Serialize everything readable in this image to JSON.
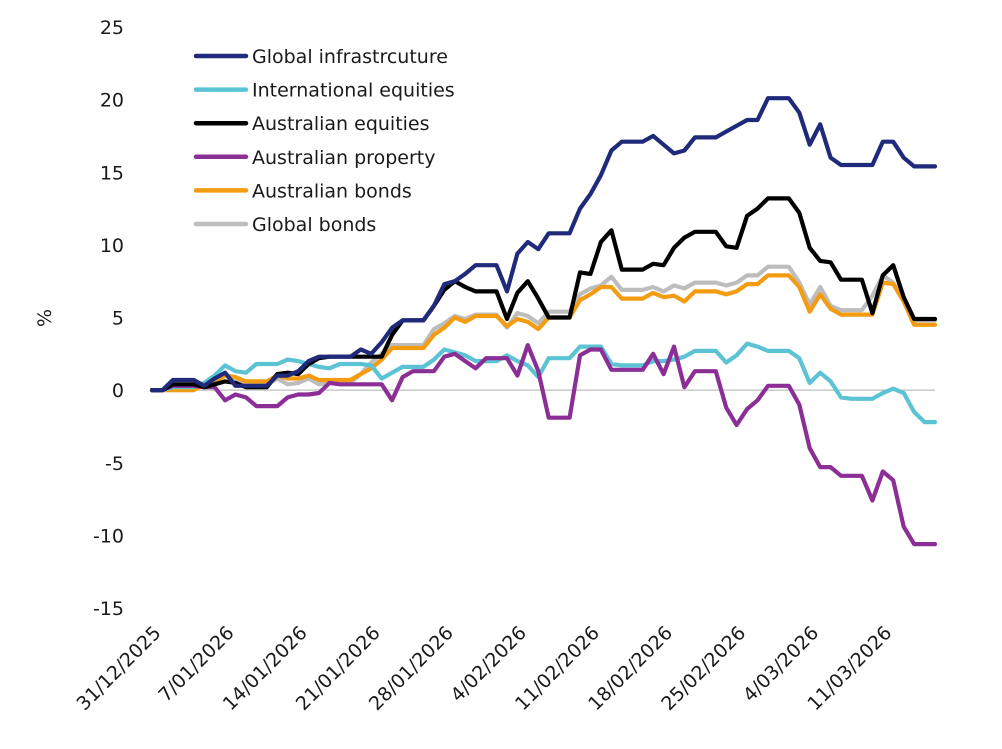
{
  "chart_data": {
    "type": "line",
    "title": "",
    "xlabel": "",
    "ylabel": "%",
    "ylim": [
      -15,
      25
    ],
    "yticks": [
      "25",
      "20",
      "15",
      "10",
      "5",
      "0",
      "-5",
      "-10",
      "-15"
    ],
    "xtick_labels": [
      "31/12/2025",
      "7/01/2026",
      "14/01/2026",
      "21/01/2026",
      "28/01/2026",
      "4/02/2026",
      "11/02/2026",
      "18/02/2026",
      "25/02/2026",
      "4/03/2026",
      "11/03/2026"
    ],
    "grid": false,
    "legend_position": "top-left",
    "x_dates": [
      "2025-12-31",
      "2026-01-01",
      "2026-01-02",
      "2026-01-03",
      "2026-01-04",
      "2026-01-05",
      "2026-01-06",
      "2026-01-07",
      "2026-01-08",
      "2026-01-09",
      "2026-01-10",
      "2026-01-11",
      "2026-01-12",
      "2026-01-13",
      "2026-01-14",
      "2026-01-15",
      "2026-01-16",
      "2026-01-17",
      "2026-01-18",
      "2026-01-19",
      "2026-01-20",
      "2026-01-21",
      "2026-01-22",
      "2026-01-23",
      "2026-01-24",
      "2026-01-25",
      "2026-01-26",
      "2026-01-27",
      "2026-01-28",
      "2026-01-29",
      "2026-01-30",
      "2026-01-31",
      "2026-02-01",
      "2026-02-02",
      "2026-02-03",
      "2026-02-04",
      "2026-02-05",
      "2026-02-06",
      "2026-02-07",
      "2026-02-08",
      "2026-02-09",
      "2026-02-10",
      "2026-02-11",
      "2026-02-12",
      "2026-02-13",
      "2026-02-14",
      "2026-02-15",
      "2026-02-16",
      "2026-02-17",
      "2026-02-18",
      "2026-02-19",
      "2026-02-20",
      "2026-02-21",
      "2026-02-22",
      "2026-02-23",
      "2026-02-24",
      "2026-02-25",
      "2026-02-26",
      "2026-02-27",
      "2026-02-28",
      "2026-03-01",
      "2026-03-02",
      "2026-03-03",
      "2026-03-04",
      "2026-03-05",
      "2026-03-06",
      "2026-03-07",
      "2026-03-08",
      "2026-03-09",
      "2026-03-10",
      "2026-03-11",
      "2026-03-12",
      "2026-03-13",
      "2026-03-14",
      "2026-03-15",
      "2026-03-16"
    ],
    "series": [
      {
        "name": "Global infrastrcuture",
        "color": "#1f2a7a",
        "values": [
          0,
          0,
          0.7,
          0.7,
          0.7,
          0.3,
          0.8,
          1.2,
          0.3,
          0.3,
          0.3,
          0.3,
          1.0,
          1.0,
          1.3,
          2.0,
          2.3,
          2.3,
          2.3,
          2.3,
          2.8,
          2.5,
          3.3,
          4.3,
          4.8,
          4.8,
          4.8,
          5.8,
          7.3,
          7.5,
          8.0,
          8.6,
          8.6,
          8.6,
          6.8,
          9.4,
          10.2,
          9.7,
          10.8,
          10.8,
          10.8,
          12.5,
          13.5,
          14.8,
          16.5,
          17.1,
          17.1,
          17.1,
          17.5,
          16.9,
          16.3,
          16.5,
          17.4,
          17.4,
          17.4,
          17.8,
          18.2,
          18.6,
          18.6,
          20.1,
          20.1,
          20.1,
          19.1,
          16.9,
          18.3,
          16.0,
          15.5,
          15.5,
          15.5,
          15.5,
          17.1,
          17.1,
          16.0,
          15.4,
          15.4,
          15.4
        ]
      },
      {
        "name": "International equities",
        "color": "#5bc3d4",
        "values": [
          0,
          0,
          0.2,
          0.2,
          0.2,
          0.5,
          1.0,
          1.7,
          1.3,
          1.2,
          1.8,
          1.8,
          1.8,
          2.1,
          2.0,
          1.8,
          1.6,
          1.5,
          1.8,
          1.8,
          1.8,
          1.7,
          0.8,
          1.2,
          1.6,
          1.6,
          1.6,
          2.1,
          2.8,
          2.6,
          2.4,
          2.0,
          2.0,
          2.0,
          2.4,
          2.0,
          1.7,
          0.9,
          2.2,
          2.2,
          2.2,
          3.0,
          3.0,
          3.0,
          1.8,
          1.7,
          1.7,
          1.7,
          2.0,
          2.0,
          2.1,
          2.3,
          2.7,
          2.7,
          2.7,
          1.9,
          2.4,
          3.2,
          3.0,
          2.7,
          2.7,
          2.7,
          2.2,
          0.5,
          1.2,
          0.6,
          -0.5,
          -0.6,
          -0.6,
          -0.6,
          -0.2,
          0.1,
          -0.2,
          -1.5,
          -2.2,
          -2.2
        ]
      },
      {
        "name": "Australian equities",
        "color": "#000000",
        "values": [
          0,
          0,
          0.4,
          0.4,
          0.4,
          0.2,
          0.4,
          0.6,
          0.5,
          0.2,
          0.2,
          0.2,
          1.1,
          1.2,
          1.1,
          1.8,
          2.2,
          2.3,
          2.3,
          2.3,
          2.3,
          2.3,
          2.3,
          3.8,
          4.8,
          4.8,
          4.8,
          5.8,
          6.9,
          7.5,
          7.1,
          6.8,
          6.8,
          6.8,
          4.9,
          6.7,
          7.5,
          6.3,
          5.0,
          5.0,
          5.0,
          8.1,
          8.0,
          10.2,
          11.0,
          8.3,
          8.3,
          8.3,
          8.7,
          8.6,
          9.8,
          10.5,
          10.9,
          10.9,
          10.9,
          9.9,
          9.8,
          12.0,
          12.5,
          13.2,
          13.2,
          13.2,
          12.2,
          9.8,
          8.9,
          8.8,
          7.6,
          7.6,
          7.6,
          5.3,
          7.9,
          8.6,
          6.4,
          4.9,
          4.9,
          4.9
        ]
      },
      {
        "name": "Australian property",
        "color": "#8b2f96",
        "values": [
          0,
          0,
          0.3,
          0.3,
          0.3,
          0.2,
          0.2,
          -0.7,
          -0.3,
          -0.5,
          -1.1,
          -1.1,
          -1.1,
          -0.5,
          -0.3,
          -0.3,
          -0.2,
          0.5,
          0.4,
          0.4,
          0.4,
          0.4,
          0.4,
          -0.7,
          0.9,
          1.3,
          1.3,
          1.3,
          2.3,
          2.5,
          2.0,
          1.5,
          2.2,
          2.2,
          2.2,
          1.0,
          3.1,
          1.3,
          -1.9,
          -1.9,
          -1.9,
          2.4,
          2.8,
          2.8,
          1.4,
          1.4,
          1.4,
          1.4,
          2.5,
          1.1,
          3.0,
          0.2,
          1.3,
          1.3,
          1.3,
          -1.2,
          -2.4,
          -1.3,
          -0.7,
          0.3,
          0.3,
          0.3,
          -1.0,
          -4.0,
          -5.3,
          -5.3,
          -5.9,
          -5.9,
          -5.9,
          -7.6,
          -5.6,
          -6.2,
          -9.4,
          -10.6,
          -10.6,
          -10.6
        ]
      },
      {
        "name": "Australian bonds",
        "color": "#f39c12",
        "values": [
          0,
          0,
          0,
          0,
          0,
          0.4,
          0.6,
          1.0,
          0.9,
          0.6,
          0.6,
          0.6,
          1.0,
          0.8,
          0.8,
          1.0,
          0.7,
          0.7,
          0.7,
          0.7,
          1.1,
          1.5,
          2.1,
          2.9,
          2.9,
          2.9,
          2.9,
          3.8,
          4.3,
          5.0,
          4.7,
          5.1,
          5.1,
          5.1,
          4.4,
          4.9,
          4.7,
          4.2,
          5.0,
          5.0,
          5.0,
          6.2,
          6.6,
          7.1,
          7.1,
          6.3,
          6.3,
          6.3,
          6.7,
          6.4,
          6.5,
          6.1,
          6.8,
          6.8,
          6.8,
          6.6,
          6.8,
          7.3,
          7.3,
          7.9,
          7.9,
          7.9,
          7.1,
          5.4,
          6.6,
          5.6,
          5.2,
          5.2,
          5.2,
          5.2,
          7.4,
          7.3,
          6.1,
          4.5,
          4.5,
          4.5
        ]
      },
      {
        "name": "Global bonds",
        "color": "#bdbdbd",
        "values": [
          0,
          0,
          0,
          0,
          0,
          0.5,
          0.8,
          1.0,
          0.8,
          0.4,
          0.4,
          0.4,
          0.8,
          0.4,
          0.5,
          0.8,
          0.4,
          0.5,
          0.5,
          0.5,
          1.1,
          1.9,
          2.5,
          3.1,
          3.1,
          3.1,
          3.1,
          4.2,
          4.6,
          5.1,
          4.9,
          5.2,
          5.2,
          5.2,
          4.3,
          5.3,
          5.1,
          4.6,
          5.4,
          5.4,
          5.4,
          6.6,
          7.0,
          7.2,
          7.8,
          6.9,
          6.9,
          6.9,
          7.1,
          6.8,
          7.2,
          7.0,
          7.4,
          7.4,
          7.4,
          7.2,
          7.4,
          7.9,
          7.9,
          8.5,
          8.5,
          8.5,
          7.4,
          5.9,
          7.1,
          5.8,
          5.5,
          5.5,
          5.5,
          6.5,
          7.9,
          7.4,
          6.2,
          4.8,
          4.8,
          4.8
        ]
      }
    ]
  }
}
